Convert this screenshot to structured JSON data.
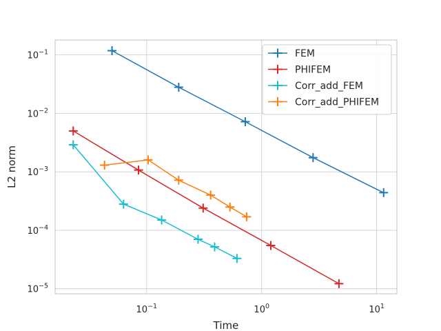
{
  "chart_data": {
    "type": "line",
    "title": "",
    "xlabel": "Time",
    "ylabel": "L2 norm",
    "xscale": "log",
    "yscale": "log",
    "xlim": [
      0.016,
      15
    ],
    "ylim": [
      8.2e-06,
      0.18
    ],
    "x_ticks": [
      {
        "value": 0.1,
        "base": "10",
        "exp": "−1"
      },
      {
        "value": 1,
        "base": "10",
        "exp": "0"
      },
      {
        "value": 10,
        "base": "10",
        "exp": "1"
      }
    ],
    "y_ticks": [
      {
        "value": 1e-05,
        "base": "10",
        "exp": "−5"
      },
      {
        "value": 0.0001,
        "base": "10",
        "exp": "−4"
      },
      {
        "value": 0.001,
        "base": "10",
        "exp": "−3"
      },
      {
        "value": 0.01,
        "base": "10",
        "exp": "−2"
      },
      {
        "value": 0.1,
        "base": "10",
        "exp": "−1"
      }
    ],
    "grid": true,
    "legend_position": "top-right",
    "series": [
      {
        "name": "FEM",
        "color": "#1f77b4",
        "x": [
          0.05,
          0.19,
          0.72,
          2.8,
          11.5
        ],
        "y": [
          0.118,
          0.028,
          0.0072,
          0.00175,
          0.00044
        ]
      },
      {
        "name": "PHIFEM",
        "color": "#d62728",
        "x": [
          0.023,
          0.085,
          0.31,
          1.2,
          4.7
        ],
        "y": [
          0.005,
          0.00107,
          0.00024,
          5.5e-05,
          1.22e-05
        ]
      },
      {
        "name": "Corr_add_FEM",
        "color": "#17becf",
        "x": [
          0.023,
          0.063,
          0.135,
          0.28,
          0.39,
          0.61
        ],
        "y": [
          0.0029,
          0.00028,
          0.00015,
          7e-05,
          5.2e-05,
          3.3e-05
        ]
      },
      {
        "name": "Corr_add_PHIFEM",
        "color": "#ff7f0e",
        "x": [
          0.043,
          0.103,
          0.19,
          0.36,
          0.53,
          0.74
        ],
        "y": [
          0.0013,
          0.0016,
          0.00072,
          0.0004,
          0.00025,
          0.00017
        ]
      }
    ]
  }
}
